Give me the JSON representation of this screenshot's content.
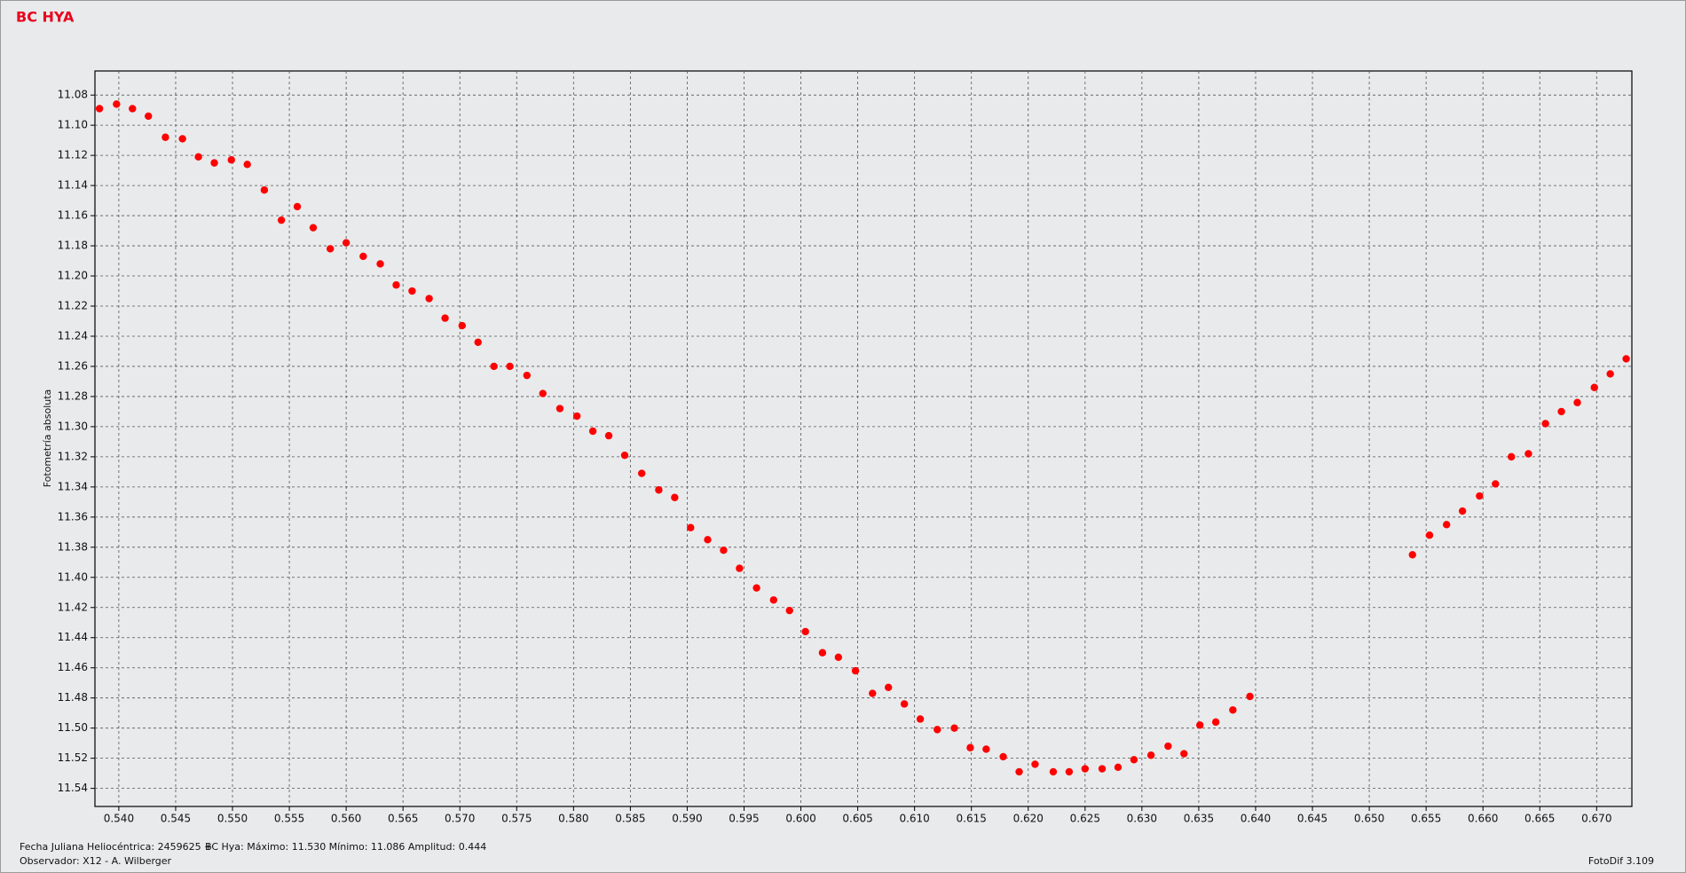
{
  "chart_data": {
    "type": "scatter",
    "title": "BC HYA",
    "ylabel": "Fotometría absoluta",
    "notes": [
      "Fecha Juliana Heliocéntrica: 2459625 +",
      "BC Hya:  Máximo: 11.530  Mínimo: 11.086  Amplitud: 0.444",
      "Observador: X12 - A. Wilberger",
      "FotoDif 3.109"
    ],
    "color": "#ff0000",
    "grid": true,
    "y_inverted": true,
    "xlim": [
      0.5379,
      0.6731
    ],
    "ylim": [
      11.064,
      11.552
    ],
    "xticks": [
      {
        "value": 0.54,
        "label": "0.540"
      },
      0.545,
      {
        "value": 0.55,
        "label": "0.550"
      },
      0.555,
      {
        "value": 0.56,
        "label": "0.560"
      },
      0.565,
      {
        "value": 0.57,
        "label": "0.570"
      },
      0.575,
      {
        "value": 0.58,
        "label": "0.580"
      },
      0.585,
      {
        "value": 0.59,
        "label": "0.590"
      },
      0.595,
      {
        "value": 0.6,
        "label": "0.600"
      },
      0.605,
      {
        "value": 0.61,
        "label": "0.610"
      },
      0.615,
      {
        "value": 0.62,
        "label": "0.620"
      },
      0.625,
      {
        "value": 0.63,
        "label": "0.630"
      },
      0.635,
      {
        "value": 0.64,
        "label": "0.640"
      },
      0.645,
      {
        "value": 0.65,
        "label": "0.650"
      },
      0.655,
      {
        "value": 0.66,
        "label": "0.660"
      },
      0.665,
      {
        "value": 0.67,
        "label": "0.670"
      }
    ],
    "yticks": [
      11.08,
      {
        "value": 11.1,
        "label": "11.10"
      },
      11.12,
      11.14,
      11.16,
      11.18,
      {
        "value": 11.2,
        "label": "11.20"
      },
      11.22,
      11.24,
      11.26,
      11.28,
      {
        "value": 11.3,
        "label": "11.30"
      },
      11.32,
      11.34,
      11.36,
      11.38,
      {
        "value": 11.4,
        "label": "11.40"
      },
      11.42,
      11.44,
      11.46,
      11.48,
      {
        "value": 11.5,
        "label": "11.50"
      },
      11.52,
      11.54
    ],
    "x": [
      0.5383,
      0.5398,
      0.5412,
      0.5426,
      0.5441,
      0.5456,
      0.547,
      0.5484,
      0.5499,
      0.5513,
      0.5528,
      0.5543,
      0.5557,
      0.5571,
      0.5586,
      0.56,
      0.5615,
      0.563,
      0.5644,
      0.5658,
      0.5673,
      0.5687,
      0.5702,
      0.5716,
      0.573,
      0.5744,
      0.5759,
      0.5773,
      0.5788,
      0.5803,
      0.5817,
      0.5831,
      0.5845,
      0.586,
      0.5875,
      0.5889,
      0.5903,
      0.5918,
      0.5932,
      0.5946,
      0.5961,
      0.5976,
      0.599,
      0.6004,
      0.6019,
      0.6033,
      0.6048,
      0.6063,
      0.6077,
      0.6091,
      0.6105,
      0.612,
      0.6135,
      0.6149,
      0.6163,
      0.6178,
      0.6192,
      0.6206,
      0.6222,
      0.6236,
      0.625,
      0.6265,
      0.6279,
      0.6293,
      0.6308,
      0.6323,
      0.6337,
      0.6351,
      0.6365,
      0.638,
      0.6395,
      0.6538,
      0.6553,
      0.6568,
      0.6582,
      0.6597,
      0.6611,
      0.6625,
      0.664,
      0.6655,
      0.6669,
      0.6683,
      0.6698,
      0.6712,
      0.6726
    ],
    "values": [
      11.089,
      11.086,
      11.089,
      11.094,
      11.108,
      11.109,
      11.121,
      11.125,
      11.123,
      11.126,
      11.143,
      11.163,
      11.154,
      11.168,
      11.182,
      11.178,
      11.187,
      11.192,
      11.206,
      11.21,
      11.215,
      11.228,
      11.233,
      11.244,
      11.26,
      11.26,
      11.266,
      11.278,
      11.288,
      11.293,
      11.303,
      11.306,
      11.319,
      11.331,
      11.342,
      11.347,
      11.367,
      11.375,
      11.382,
      11.394,
      11.407,
      11.415,
      11.422,
      11.436,
      11.45,
      11.453,
      11.462,
      11.477,
      11.473,
      11.484,
      11.494,
      11.501,
      11.5,
      11.513,
      11.514,
      11.519,
      11.529,
      11.524,
      11.529,
      11.529,
      11.527,
      11.527,
      11.526,
      11.521,
      11.518,
      11.512,
      11.517,
      11.498,
      11.496,
      11.488,
      11.479,
      11.385,
      11.372,
      11.365,
      11.356,
      11.346,
      11.338,
      11.32,
      11.318,
      11.298,
      11.29,
      11.284,
      11.274,
      11.265,
      11.255
    ]
  }
}
